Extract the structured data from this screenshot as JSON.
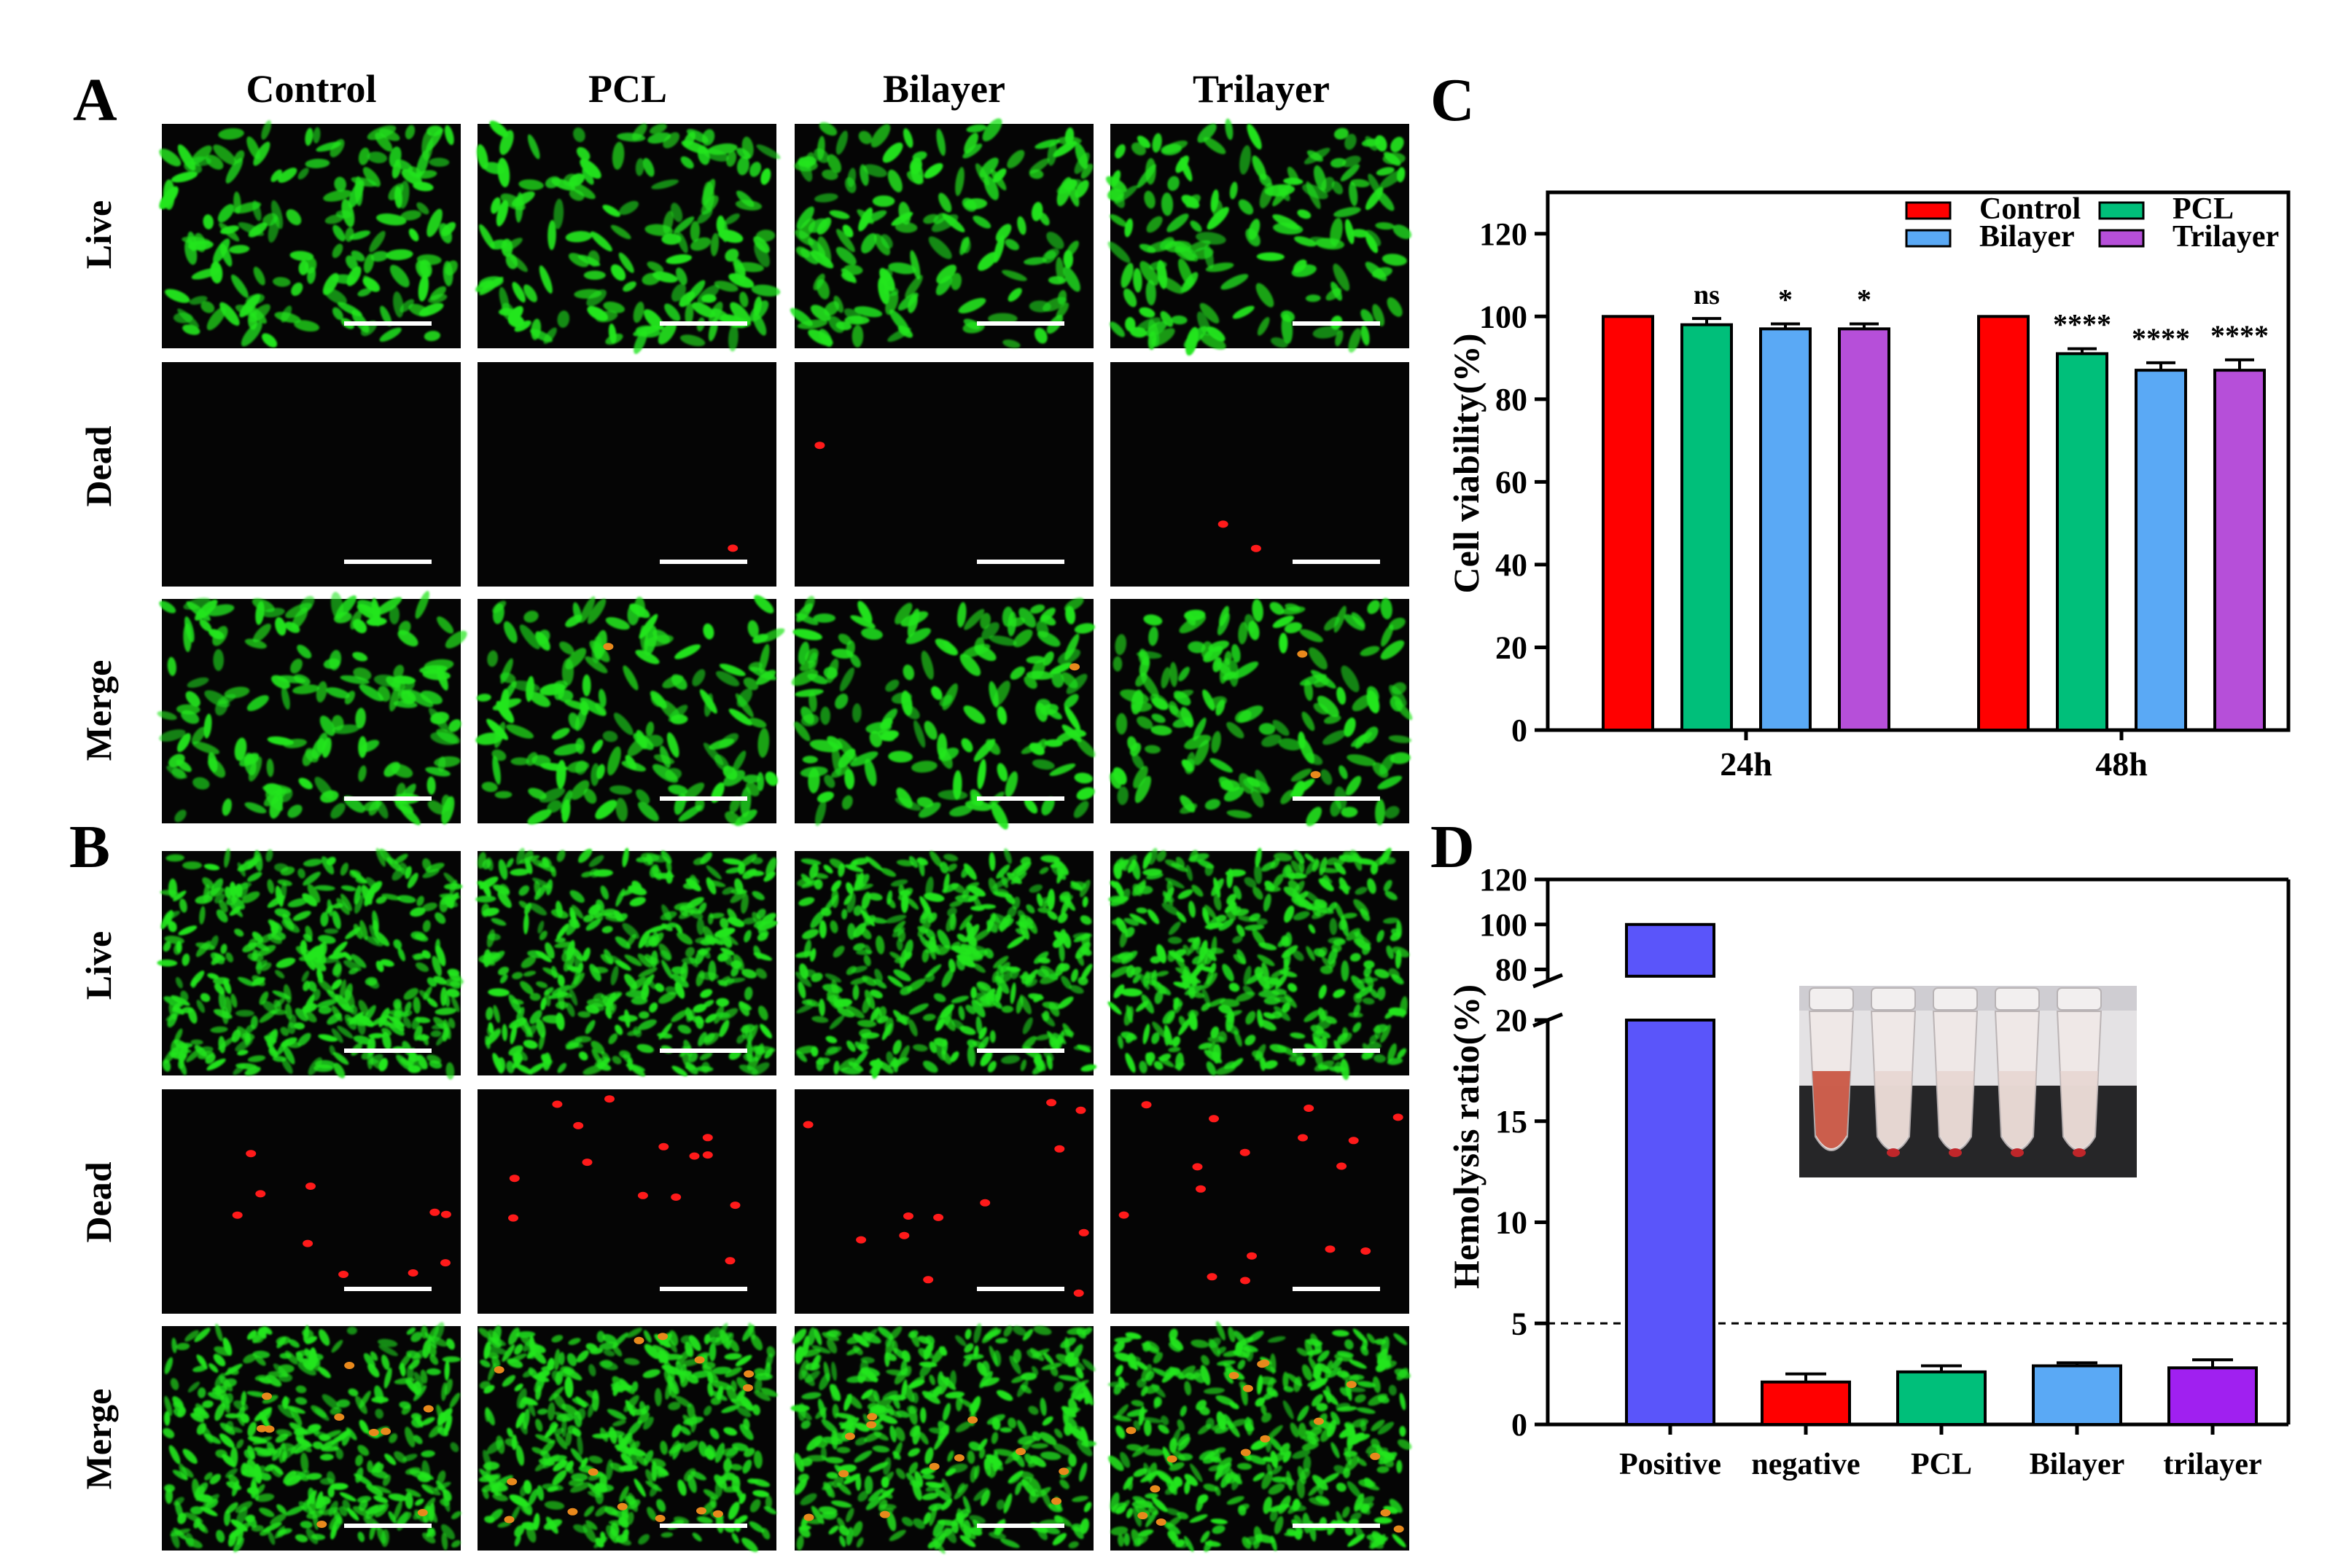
{
  "panels": {
    "A": "A",
    "B": "B",
    "C": "C",
    "D": "D"
  },
  "micrographs": {
    "columns": [
      "Control",
      "PCL",
      "Bilayer",
      "Trilayer"
    ],
    "rows": [
      "Live",
      "Dead",
      "Merge"
    ],
    "colors": {
      "live_cell": "#22e61e",
      "dead_cell": "#ff1a1a",
      "merge_dead": "#e8891c",
      "background": "#050505"
    },
    "dead_counts": {
      "A": [
        0,
        1,
        1,
        2
      ],
      "B": [
        10,
        14,
        12,
        16
      ]
    }
  },
  "chart_data": [
    {
      "type": "bar",
      "panel": "C",
      "categories": [
        "24h",
        "48h"
      ],
      "series": [
        {
          "name": "Control",
          "color": "#ff0000",
          "values": [
            100,
            100
          ],
          "errors": [
            0,
            0
          ],
          "significance": [
            "",
            ""
          ]
        },
        {
          "name": "PCL",
          "color": "#00bf7a",
          "values": [
            98,
            91
          ],
          "errors": [
            1.5,
            1.2
          ],
          "significance": [
            "ns",
            "****"
          ]
        },
        {
          "name": "Bilayer",
          "color": "#5aa9f5",
          "values": [
            97,
            87
          ],
          "errors": [
            1.2,
            1.8
          ],
          "significance": [
            "*",
            "****"
          ]
        },
        {
          "name": "Trilayer",
          "color": "#b64fd9",
          "values": [
            97,
            87
          ],
          "errors": [
            1.2,
            2.5
          ],
          "significance": [
            "*",
            "****"
          ]
        }
      ],
      "ylabel": "Cell viability(%)",
      "xlabel": "",
      "ylim": [
        0,
        130
      ],
      "yticks": [
        0,
        20,
        40,
        60,
        80,
        100,
        120
      ],
      "legend": "top-right",
      "grid": false
    },
    {
      "type": "bar",
      "panel": "D",
      "categories": [
        "Positive",
        "negative",
        "PCL",
        "Bilayer",
        "trilayer"
      ],
      "values": [
        100,
        2.1,
        2.6,
        2.9,
        2.8
      ],
      "errors": [
        0,
        0.4,
        0.3,
        0.15,
        0.4
      ],
      "colors": [
        "#5a55fa",
        "#ff0000",
        "#00bf7a",
        "#5aa9f5",
        "#a020f0"
      ],
      "ylabel": "Hemolysis ratio(%)",
      "xlabel": "",
      "broken_axis": {
        "lower_range": [
          0,
          20
        ],
        "lower_ticks": [
          0,
          5,
          10,
          15,
          20
        ],
        "upper_range": [
          75,
          120
        ],
        "upper_ticks": [
          80,
          100,
          120
        ]
      },
      "threshold_line": 5,
      "grid": false,
      "inset_photo": {
        "tubes": 5,
        "colors": {
          "red_tube": "#c8503c",
          "clear_tube": "#e6d2cc",
          "backdrop": "#262628",
          "blood_pellet": "#c0262a"
        }
      }
    }
  ]
}
